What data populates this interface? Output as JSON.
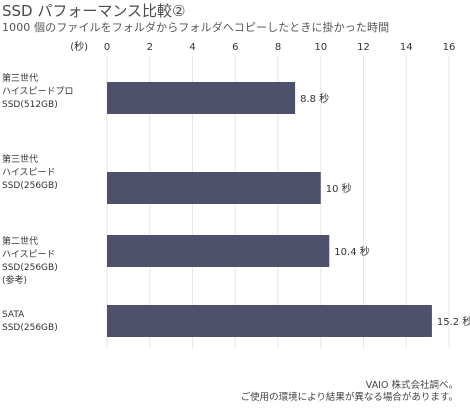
{
  "page": {
    "title": "SSD パフォーマンス比較②",
    "subtitle": "1000 個のファイルをフォルダからフォルダへコピーしたときに掛かった時間",
    "footnote_1": "VAIO 株式会社調べ。",
    "footnote_2": "ご使用の環境により結果が異なる場合があります。"
  },
  "chart_data": {
    "type": "bar",
    "orientation": "horizontal",
    "unit_label": "(秒)",
    "value_suffix": "秒",
    "xlim": [
      0,
      16
    ],
    "ticks": [
      0,
      2,
      4,
      6,
      8,
      10,
      12,
      14,
      16
    ],
    "grid": true,
    "bar_color": "#4f506c",
    "grid_color": "#e6e6e6",
    "categories": [
      [
        "第三世代",
        "ハイスピードプロ",
        "SSD(512GB)"
      ],
      [
        "第三世代",
        "ハイスピード",
        "SSD(256GB)"
      ],
      [
        "第二世代",
        "ハイスピード",
        "SSD(256GB)",
        "(参考)"
      ],
      [
        "SATA",
        "SSD(256GB)"
      ]
    ],
    "values": [
      8.8,
      10,
      10.4,
      15.2
    ],
    "value_labels": [
      "8.8 秒",
      "10 秒",
      "10.4 秒",
      "15.2 秒"
    ]
  }
}
